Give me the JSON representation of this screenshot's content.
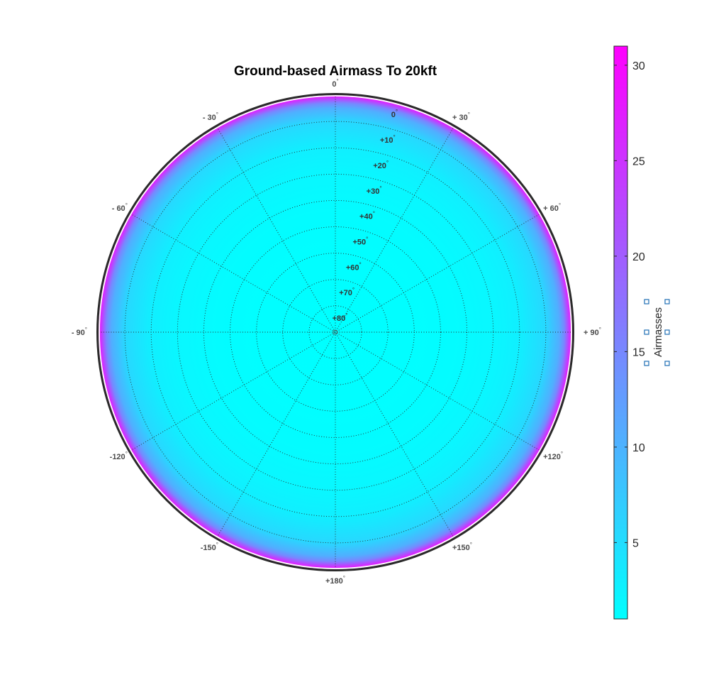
{
  "chart_data": {
    "type": "heatmap",
    "projection": "polar",
    "title": "Ground-based Airmass To 20kft",
    "azimuth_labels": [
      {
        "angle": 0,
        "text": "0"
      },
      {
        "angle": 30,
        "text": "+ 30"
      },
      {
        "angle": 60,
        "text": "+ 60"
      },
      {
        "angle": 90,
        "text": "+ 90"
      },
      {
        "angle": 120,
        "text": "+120"
      },
      {
        "angle": 150,
        "text": "+150"
      },
      {
        "angle": 180,
        "text": "+180"
      },
      {
        "angle": -150,
        "text": "-150"
      },
      {
        "angle": -120,
        "text": "-120"
      },
      {
        "angle": -90,
        "text": "- 90"
      },
      {
        "angle": -60,
        "text": "- 60"
      },
      {
        "angle": -30,
        "text": "- 30"
      }
    ],
    "elevation_labels": [
      {
        "elevation": 0,
        "text": "0"
      },
      {
        "elevation": 10,
        "text": "+10"
      },
      {
        "elevation": 20,
        "text": "+20"
      },
      {
        "elevation": 30,
        "text": "+30"
      },
      {
        "elevation": 40,
        "text": "+40"
      },
      {
        "elevation": 50,
        "text": "+50"
      },
      {
        "elevation": 60,
        "text": "+60"
      },
      {
        "elevation": 70,
        "text": "+70"
      },
      {
        "elevation": 80,
        "text": "+80"
      }
    ],
    "degree_symbol": "°",
    "elevation_range": [
      0,
      90
    ],
    "grid": true,
    "colormap": "cool",
    "colors": {
      "low": "#00ffff",
      "high": "#ff00ff",
      "grid": "#2a2a2a",
      "rim": "#2a2a2a"
    },
    "radial_profile": [
      {
        "elevation": 90,
        "value": 1.0
      },
      {
        "elevation": 60,
        "value": 1.15
      },
      {
        "elevation": 45,
        "value": 1.41
      },
      {
        "elevation": 30,
        "value": 2.0
      },
      {
        "elevation": 20,
        "value": 2.9
      },
      {
        "elevation": 10,
        "value": 5.6
      },
      {
        "elevation": 5,
        "value": 10.4
      },
      {
        "elevation": 3,
        "value": 15.0
      },
      {
        "elevation": 1,
        "value": 25.0
      },
      {
        "elevation": 0,
        "value": 31.0
      }
    ],
    "colorbar": {
      "label": "Airmasses",
      "range": [
        1,
        31
      ],
      "ticks": [
        5,
        10,
        15,
        20,
        25,
        30
      ]
    }
  }
}
